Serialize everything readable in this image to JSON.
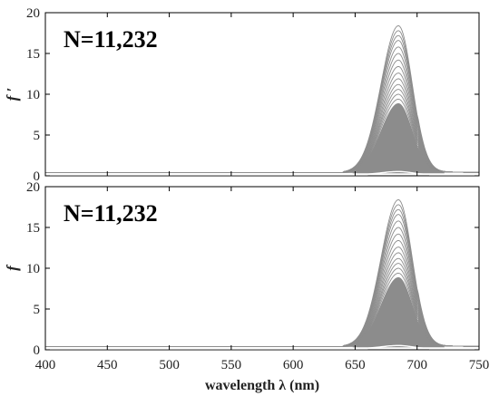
{
  "chart_data": [
    {
      "type": "line",
      "panel": "top",
      "ylabel": "f ′",
      "xlim": [
        400,
        750
      ],
      "ylim": [
        0,
        20
      ],
      "yticks": [
        0,
        5,
        10,
        15,
        20
      ],
      "xticks": [
        400,
        450,
        500,
        550,
        600,
        650,
        700,
        750
      ],
      "show_xtick_labels": false,
      "annotation": "N=11,232",
      "line_color": "#8c8c8c",
      "baseline_value": 0.4,
      "peak_center": 685,
      "peak_max_values": [
        18.0,
        17.4,
        16.8,
        16.2,
        15.4,
        14.6,
        13.8,
        13.0,
        12.2,
        11.5,
        10.8,
        10.2,
        9.6,
        9.0,
        8.4,
        7.8,
        7.2,
        6.6,
        6.0,
        5.4,
        4.8,
        4.2,
        3.6,
        3.0,
        2.4,
        1.8,
        1.2,
        0.6
      ],
      "grid": false
    },
    {
      "type": "line",
      "panel": "bottom",
      "ylabel": "f",
      "xlabel": "wavelength λ (nm)",
      "xlim": [
        400,
        750
      ],
      "ylim": [
        0,
        20
      ],
      "yticks": [
        0,
        5,
        10,
        15,
        20
      ],
      "xticks": [
        400,
        450,
        500,
        550,
        600,
        650,
        700,
        750
      ],
      "show_xtick_labels": true,
      "annotation": "N=11,232",
      "line_color": "#8c8c8c",
      "baseline_value": 0.4,
      "peak_center": 685,
      "peak_max_values": [
        18.0,
        17.4,
        16.8,
        16.2,
        15.4,
        14.6,
        13.8,
        13.0,
        12.2,
        11.5,
        10.8,
        10.2,
        9.6,
        9.0,
        8.4,
        7.8,
        7.2,
        6.6,
        6.0,
        5.4,
        4.8,
        4.2,
        3.6,
        3.0,
        2.4,
        1.8,
        1.2,
        0.6
      ],
      "grid": false
    }
  ]
}
